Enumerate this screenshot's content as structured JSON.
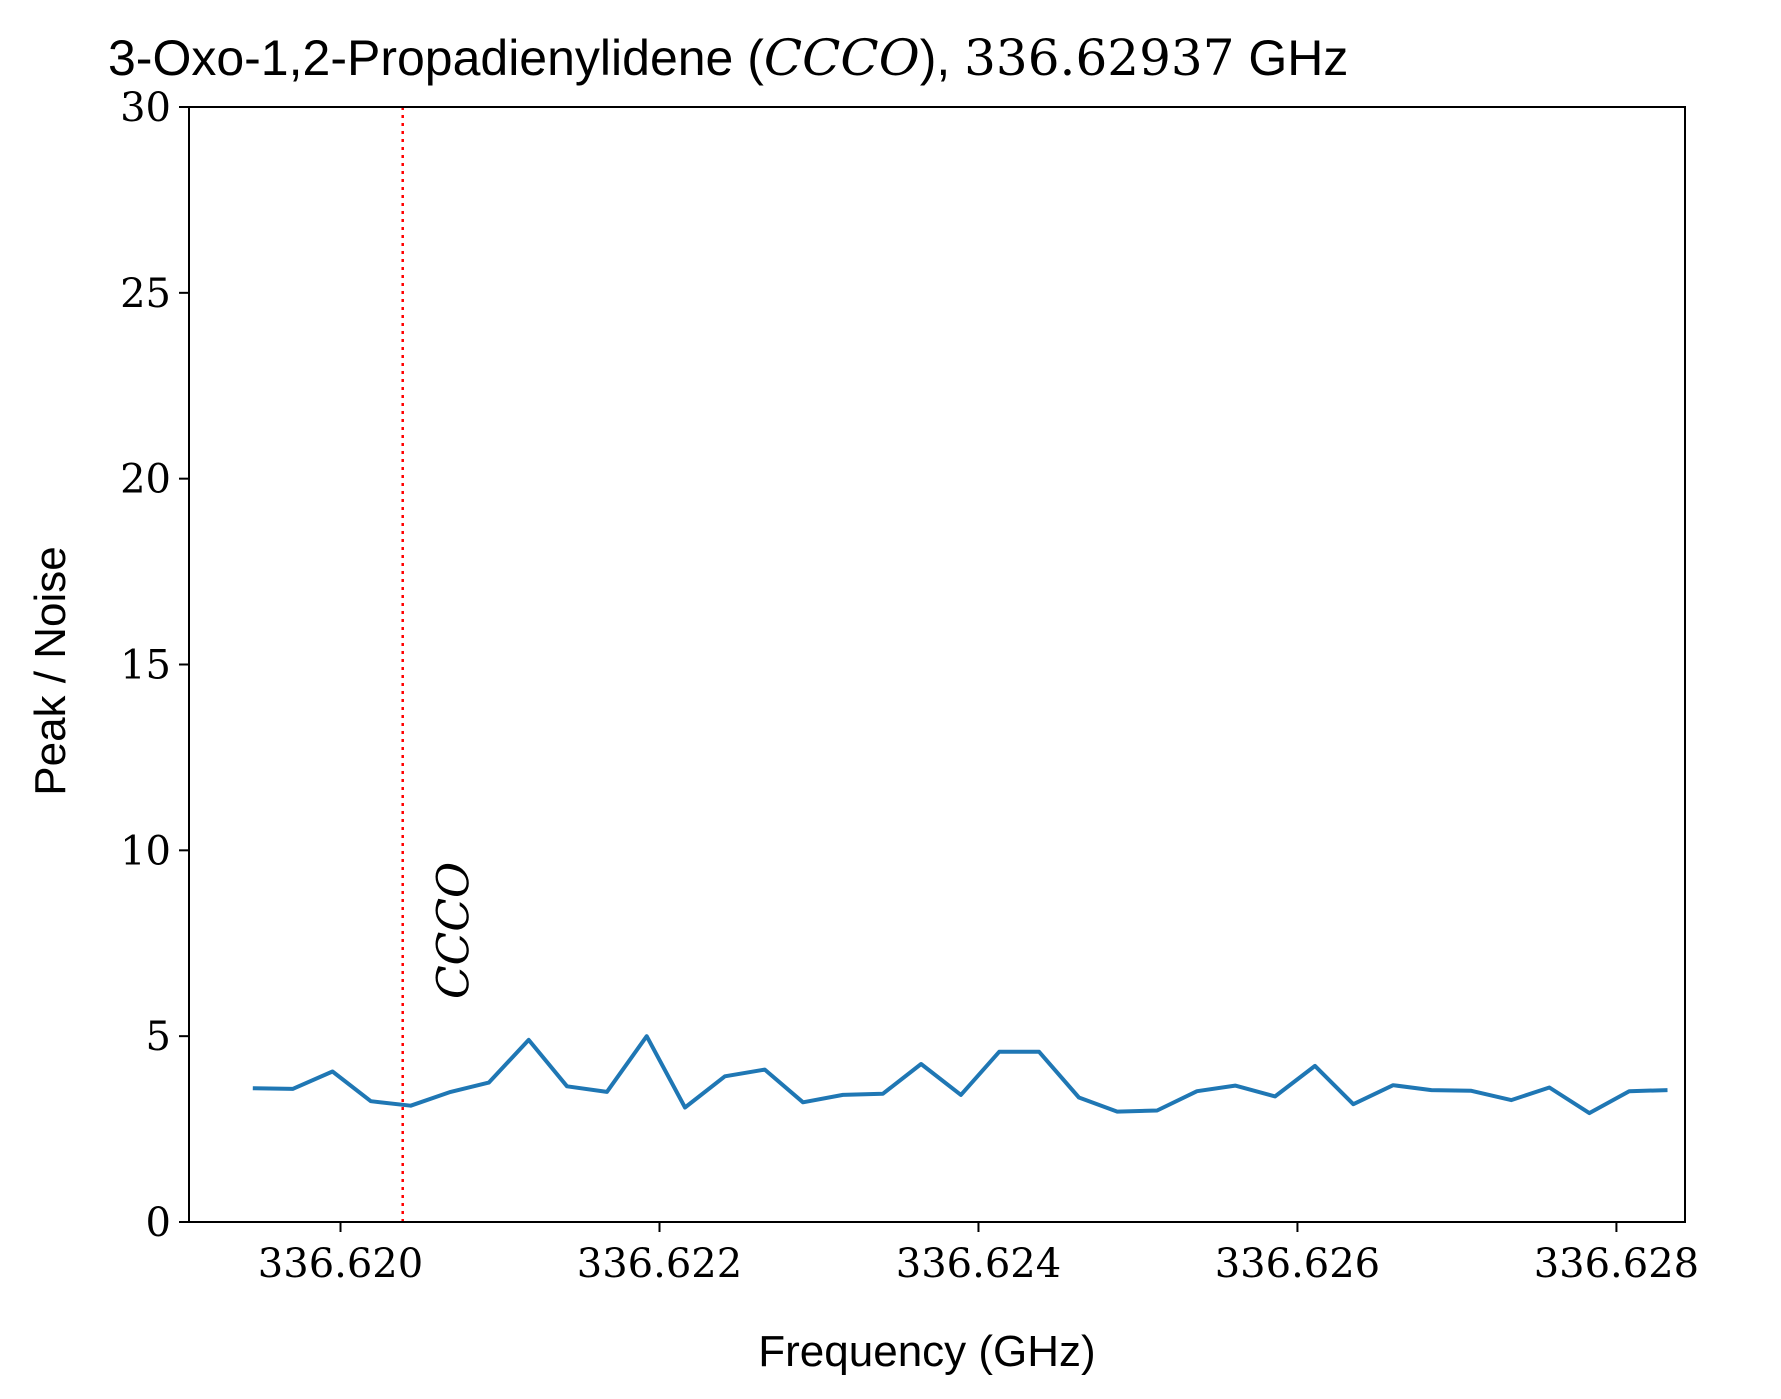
{
  "chart_data": {
    "type": "line",
    "title": {
      "prefix": "3-Oxo-1,2-Propadienylidene (",
      "species": "CCCO",
      "middle": "), ",
      "frequency": "336.62937",
      "unit": " GHz"
    },
    "xlabel": "Frequency (GHz)",
    "ylabel": "Peak / Noise",
    "xlim": [
      336.61905,
      336.62843
    ],
    "ylim": [
      0,
      30
    ],
    "xticks": [
      336.62,
      336.622,
      336.624,
      336.626,
      336.628
    ],
    "xtick_labels": [
      "336.620",
      "336.622",
      "336.624",
      "336.626",
      "336.628"
    ],
    "yticks": [
      0,
      5,
      10,
      15,
      20,
      25,
      30
    ],
    "ytick_labels": [
      "0",
      "5",
      "10",
      "15",
      "20",
      "25",
      "30"
    ],
    "grid": false,
    "series": [
      {
        "color": "#1f77b4",
        "x": [
          336.61945,
          336.6197,
          336.61995,
          336.62019,
          336.62044,
          336.62069,
          336.62093,
          336.62118,
          336.62142,
          336.62167,
          336.62192,
          336.62216,
          336.62241,
          336.62266,
          336.6229,
          336.62315,
          336.6234,
          336.62364,
          336.62389,
          336.62413,
          336.62438,
          336.62463,
          336.62487,
          336.62512,
          336.62537,
          336.62561,
          336.62586,
          336.62611,
          336.62635,
          336.6266,
          336.62684,
          336.62709,
          336.62734,
          336.62758,
          336.62783,
          336.62808,
          336.62832
        ],
        "y": [
          3.6,
          3.58,
          4.05,
          3.25,
          3.13,
          3.5,
          3.75,
          4.9,
          3.65,
          3.5,
          5.0,
          3.08,
          3.92,
          4.1,
          3.22,
          3.42,
          3.45,
          4.25,
          3.42,
          4.58,
          4.58,
          3.35,
          2.97,
          3.0,
          3.52,
          3.67,
          3.38,
          4.2,
          3.17,
          3.68,
          3.55,
          3.53,
          3.28,
          3.62,
          2.93,
          3.52,
          3.55
        ]
      }
    ],
    "annotations": [
      {
        "label": "CCCO",
        "x": 336.62039,
        "color": "#ff0000",
        "style": "dotted"
      }
    ]
  }
}
